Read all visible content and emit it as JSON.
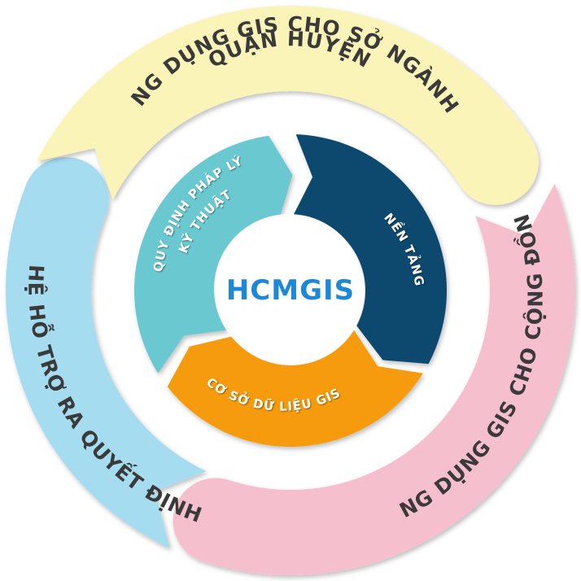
{
  "center": {
    "title": "HCMGIS"
  },
  "outer_ring": [
    {
      "id": "top",
      "label_lines": [
        "ỨNG DỤNG GIS CHO SỞ NGÀNH,",
        "QUẬN HUYỆN"
      ],
      "color": "#fbf4b8"
    },
    {
      "id": "right",
      "label_lines": [
        "ỨNG DỤNG GIS CHO CỘNG ĐỒNG"
      ],
      "color": "#f6bfce"
    },
    {
      "id": "left",
      "label_lines": [
        "HỆ HỖ TRỢ RA QUYẾT ĐỊNH"
      ],
      "color": "#a6dcef"
    }
  ],
  "inner_ring": [
    {
      "id": "legal",
      "label_lines": [
        "QUY ĐỊNH PHÁP LÝ",
        "KỸ THUẬT"
      ],
      "color": "#6ac8d0"
    },
    {
      "id": "platform",
      "label_lines": [
        "NỀN TẢNG"
      ],
      "color": "#0d4a6e"
    },
    {
      "id": "database",
      "label_lines": [
        "CƠ SỞ DỮ LIỆU GIS"
      ],
      "color": "#f59b0f"
    }
  ]
}
